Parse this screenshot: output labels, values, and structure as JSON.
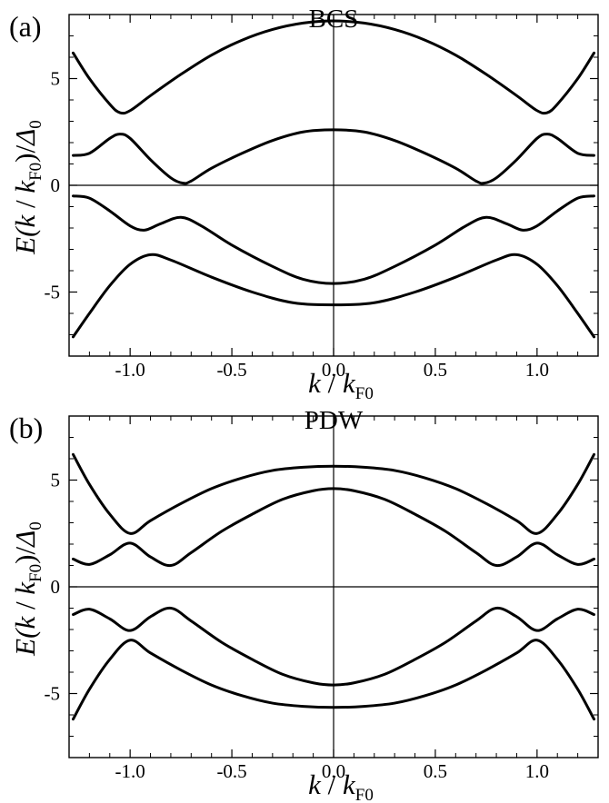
{
  "chart_data": [
    {
      "panel_label": "(a)",
      "type": "line",
      "title": "BCS",
      "xlabel": {
        "k": "k",
        "slash": " / ",
        "kF": "k",
        "sub": "F0"
      },
      "ylabel": {
        "E": "E(",
        "k": "k",
        "slash": " / ",
        "kF": "k",
        "sub": "F0",
        "close": ")/",
        "delta": "Δ",
        "dsub": "0"
      },
      "xlim": [
        -1.3,
        1.3
      ],
      "ylim": [
        -8,
        8
      ],
      "xticks": [
        -1.0,
        -0.5,
        0.0,
        0.5,
        1.0
      ],
      "xtick_labels": [
        "-1.0",
        "-0.5",
        "0.0",
        "0.5",
        "1.0"
      ],
      "yticks": [
        -5,
        0,
        5
      ],
      "ytick_labels": [
        "-5",
        "0",
        "5"
      ],
      "grid": false,
      "zero_lines": true,
      "line_color": "#000000",
      "series": [
        {
          "x": [
            -1.28,
            -1.2,
            -1.1,
            -1.05,
            -1.0,
            -0.9,
            -0.75,
            -0.6,
            -0.45,
            -0.3,
            -0.15,
            0.0,
            0.15,
            0.3,
            0.45,
            0.6,
            0.75,
            0.9,
            1.0,
            1.05,
            1.1,
            1.2,
            1.28
          ],
          "y": [
            6.2,
            5.0,
            3.8,
            3.4,
            3.5,
            4.2,
            5.2,
            6.1,
            6.8,
            7.3,
            7.6,
            7.7,
            7.6,
            7.3,
            6.8,
            6.1,
            5.2,
            4.2,
            3.5,
            3.4,
            3.8,
            5.0,
            6.2
          ]
        },
        {
          "x": [
            -1.28,
            -1.2,
            -1.1,
            -1.05,
            -1.0,
            -0.9,
            -0.8,
            -0.74,
            -0.7,
            -0.6,
            -0.45,
            -0.3,
            -0.15,
            0.0,
            0.15,
            0.3,
            0.45,
            0.6,
            0.7,
            0.74,
            0.8,
            0.9,
            1.0,
            1.05,
            1.1,
            1.2,
            1.28
          ],
          "y": [
            1.4,
            1.5,
            2.2,
            2.4,
            2.2,
            1.2,
            0.35,
            0.1,
            0.2,
            0.8,
            1.5,
            2.1,
            2.5,
            2.6,
            2.5,
            2.1,
            1.5,
            0.8,
            0.2,
            0.1,
            0.35,
            1.2,
            2.2,
            2.4,
            2.2,
            1.5,
            1.4
          ]
        },
        {
          "x": [
            -1.28,
            -1.2,
            -1.1,
            -1.0,
            -0.93,
            -0.85,
            -0.75,
            -0.65,
            -0.5,
            -0.3,
            -0.15,
            0.0,
            0.15,
            0.3,
            0.5,
            0.65,
            0.75,
            0.85,
            0.93,
            1.0,
            1.1,
            1.2,
            1.28
          ],
          "y": [
            -0.5,
            -0.6,
            -1.2,
            -1.9,
            -2.1,
            -1.8,
            -1.5,
            -1.9,
            -2.8,
            -3.8,
            -4.4,
            -4.6,
            -4.4,
            -3.8,
            -2.8,
            -1.9,
            -1.5,
            -1.8,
            -2.1,
            -1.9,
            -1.2,
            -0.6,
            -0.5
          ]
        },
        {
          "x": [
            -1.28,
            -1.2,
            -1.1,
            -1.0,
            -0.9,
            -0.8,
            -0.6,
            -0.4,
            -0.2,
            0.0,
            0.2,
            0.4,
            0.6,
            0.8,
            0.9,
            1.0,
            1.1,
            1.2,
            1.28
          ],
          "y": [
            -7.1,
            -6.0,
            -4.7,
            -3.7,
            -3.25,
            -3.5,
            -4.3,
            -5.0,
            -5.5,
            -5.6,
            -5.5,
            -5.0,
            -4.3,
            -3.5,
            -3.25,
            -3.7,
            -4.7,
            -6.0,
            -7.1
          ]
        }
      ]
    },
    {
      "panel_label": "(b)",
      "type": "line",
      "title": "PDW",
      "xlabel": {
        "k": "k",
        "slash": " / ",
        "kF": "k",
        "sub": "F0"
      },
      "ylabel": {
        "E": "E(",
        "k": "k",
        "slash": " / ",
        "kF": "k",
        "sub": "F0",
        "close": ")/",
        "delta": "Δ",
        "dsub": "0"
      },
      "xlim": [
        -1.3,
        1.3
      ],
      "ylim": [
        -8,
        8
      ],
      "xticks": [
        -1.0,
        -0.5,
        0.0,
        0.5,
        1.0
      ],
      "xtick_labels": [
        "-1.0",
        "-0.5",
        "0.0",
        "0.5",
        "1.0"
      ],
      "yticks": [
        -5,
        0,
        5
      ],
      "ytick_labels": [
        "-5",
        "0",
        "5"
      ],
      "grid": false,
      "zero_lines": true,
      "line_color": "#000000",
      "series": [
        {
          "x": [
            -1.28,
            -1.2,
            -1.1,
            -1.0,
            -0.9,
            -0.75,
            -0.6,
            -0.45,
            -0.3,
            -0.15,
            0.0,
            0.15,
            0.3,
            0.45,
            0.6,
            0.75,
            0.9,
            1.0,
            1.1,
            1.2,
            1.28
          ],
          "y": [
            6.2,
            4.8,
            3.4,
            2.5,
            3.1,
            3.9,
            4.6,
            5.1,
            5.45,
            5.6,
            5.65,
            5.6,
            5.45,
            5.1,
            4.6,
            3.9,
            3.1,
            2.5,
            3.4,
            4.8,
            6.2
          ]
        },
        {
          "x": [
            -1.28,
            -1.2,
            -1.1,
            -1.0,
            -0.9,
            -0.8,
            -0.7,
            -0.55,
            -0.4,
            -0.25,
            -0.1,
            0.0,
            0.1,
            0.25,
            0.4,
            0.55,
            0.7,
            0.8,
            0.9,
            1.0,
            1.1,
            1.2,
            1.28
          ],
          "y": [
            1.3,
            1.05,
            1.5,
            2.05,
            1.4,
            1.0,
            1.6,
            2.6,
            3.4,
            4.1,
            4.5,
            4.6,
            4.5,
            4.1,
            3.4,
            2.6,
            1.6,
            1.0,
            1.4,
            2.05,
            1.5,
            1.05,
            1.3
          ]
        },
        {
          "x": [
            -1.28,
            -1.2,
            -1.1,
            -1.0,
            -0.9,
            -0.8,
            -0.7,
            -0.55,
            -0.4,
            -0.25,
            -0.1,
            0.0,
            0.1,
            0.25,
            0.4,
            0.55,
            0.7,
            0.8,
            0.9,
            1.0,
            1.1,
            1.2,
            1.28
          ],
          "y": [
            -1.3,
            -1.05,
            -1.5,
            -2.05,
            -1.4,
            -1.0,
            -1.6,
            -2.6,
            -3.4,
            -4.1,
            -4.5,
            -4.6,
            -4.5,
            -4.1,
            -3.4,
            -2.6,
            -1.6,
            -1.0,
            -1.4,
            -2.05,
            -1.5,
            -1.05,
            -1.3
          ]
        },
        {
          "x": [
            -1.28,
            -1.2,
            -1.1,
            -1.0,
            -0.9,
            -0.75,
            -0.6,
            -0.45,
            -0.3,
            -0.15,
            0.0,
            0.15,
            0.3,
            0.45,
            0.6,
            0.75,
            0.9,
            1.0,
            1.1,
            1.2,
            1.28
          ],
          "y": [
            -6.2,
            -4.8,
            -3.4,
            -2.5,
            -3.1,
            -3.9,
            -4.6,
            -5.1,
            -5.45,
            -5.6,
            -5.65,
            -5.6,
            -5.45,
            -5.1,
            -4.6,
            -3.9,
            -3.1,
            -2.5,
            -3.4,
            -4.8,
            -6.2
          ]
        }
      ]
    }
  ]
}
